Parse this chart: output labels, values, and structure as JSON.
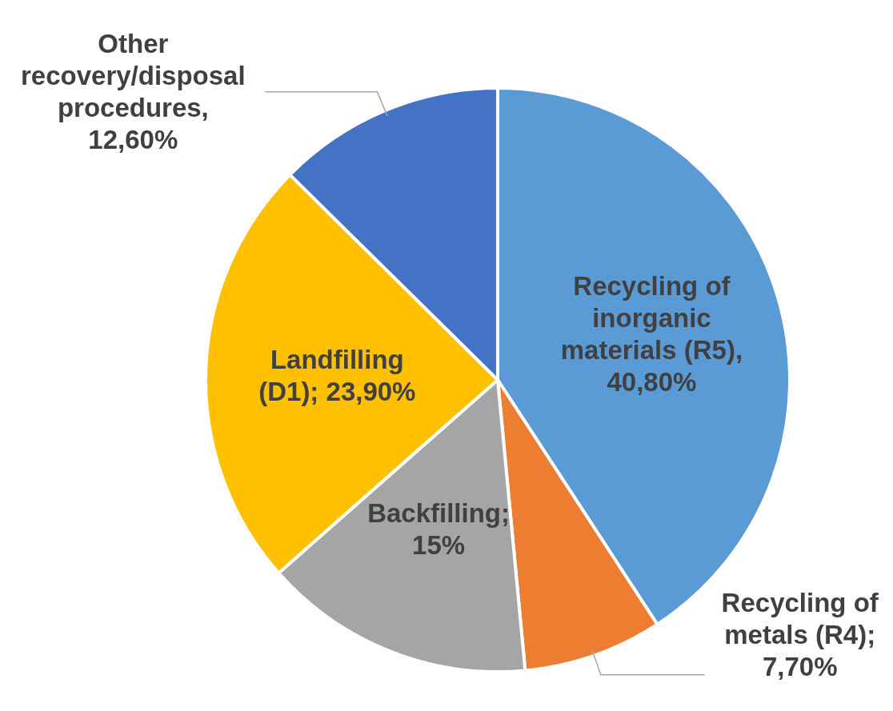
{
  "chart_data": {
    "type": "pie",
    "categories": [
      "Recycling of inorganic materials (R5)",
      "Recycling of metals (R4)",
      "Backfilling",
      "Landfilling (D1)",
      "Other recovery/disposal procedures"
    ],
    "values": [
      40.8,
      7.7,
      15,
      23.9,
      12.6
    ],
    "colors": [
      "#5b9bd5",
      "#ed7d31",
      "#a5a5a5",
      "#ffc000",
      "#4472c4"
    ],
    "value_labels": [
      ", 40,80%",
      "; 7,70%",
      "; 15%",
      "; 23,90%",
      ", 12,60%"
    ]
  }
}
